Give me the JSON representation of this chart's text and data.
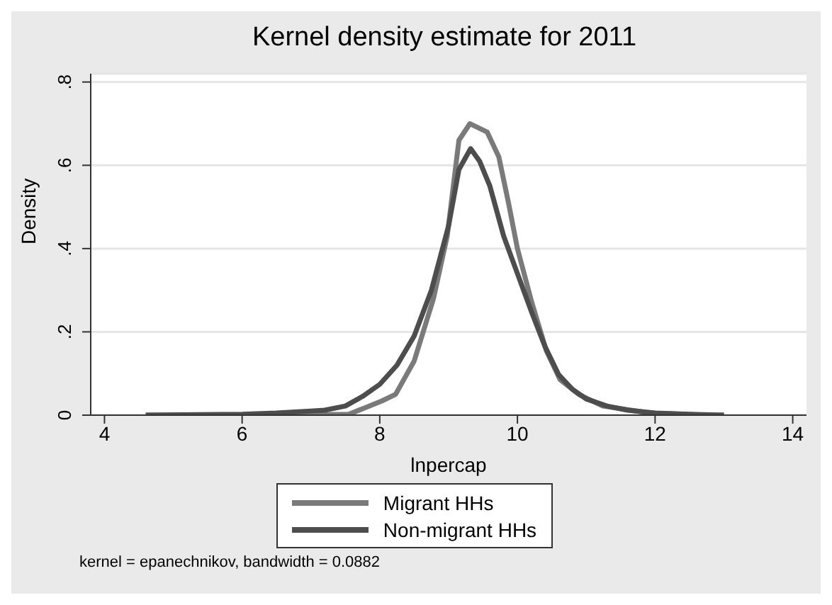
{
  "chart_data": {
    "type": "line",
    "title": "Kernel density estimate for 2011",
    "xlabel": "lnpercap",
    "ylabel": "Density",
    "xlim": [
      3.8,
      14.2
    ],
    "xticks": [
      4,
      6,
      8,
      10,
      12,
      14
    ],
    "ylim": [
      0,
      0.82
    ],
    "yticks": [
      {
        "value": 0,
        "label": "0"
      },
      {
        "value": 0.2,
        "label": ".2"
      },
      {
        "value": 0.4,
        "label": ".4"
      },
      {
        "value": 0.6,
        "label": ".6"
      },
      {
        "value": 0.8,
        "label": ".8"
      }
    ],
    "grid": "y",
    "legend": "bottom",
    "marker": "none",
    "line_style": "solid",
    "annotations": [
      "kernel = epanechnikov, bandwidth = 0.0882"
    ],
    "series": [
      {
        "name": "Migrant HHs",
        "color": "#7a7a7a",
        "x": [
          4.6,
          5.5,
          6.5,
          7.0,
          7.55,
          8.03,
          8.23,
          8.5,
          8.78,
          8.98,
          9.15,
          9.31,
          9.56,
          9.73,
          9.87,
          10.0,
          10.21,
          10.42,
          10.62,
          10.89,
          11.24,
          11.92,
          12.6,
          13.0
        ],
        "values": [
          0,
          0,
          0.001,
          0.001,
          0.002,
          0.034,
          0.05,
          0.13,
          0.28,
          0.43,
          0.66,
          0.7,
          0.68,
          0.62,
          0.51,
          0.4,
          0.27,
          0.155,
          0.085,
          0.05,
          0.022,
          0.005,
          0.001,
          0
        ]
      },
      {
        "name": "Non-migrant HHs",
        "color": "#4d4d4d",
        "x": [
          4.6,
          6.0,
          6.5,
          7.0,
          7.2,
          7.5,
          7.75,
          8.0,
          8.25,
          8.5,
          8.75,
          9.0,
          9.15,
          9.32,
          9.45,
          9.6,
          9.8,
          10.0,
          10.2,
          10.4,
          10.6,
          10.8,
          11.0,
          11.3,
          11.6,
          12.0,
          12.5,
          13.0
        ],
        "values": [
          0,
          0.002,
          0.005,
          0.01,
          0.012,
          0.022,
          0.045,
          0.074,
          0.12,
          0.19,
          0.3,
          0.455,
          0.59,
          0.64,
          0.61,
          0.55,
          0.43,
          0.34,
          0.25,
          0.165,
          0.097,
          0.062,
          0.039,
          0.022,
          0.012,
          0.005,
          0.002,
          0
        ]
      }
    ]
  }
}
